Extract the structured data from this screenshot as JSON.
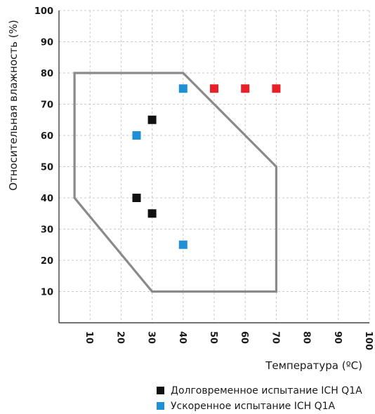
{
  "chart_data": {
    "type": "scatter",
    "title": "",
    "xlabel": "Температура (ºC)",
    "ylabel": "Относительная влажность (%)",
    "xlim": [
      0,
      100
    ],
    "ylim": [
      0,
      100
    ],
    "x_ticks": [
      "10",
      "20",
      "30",
      "40",
      "50",
      "60",
      "70",
      "80",
      "90",
      "100"
    ],
    "y_ticks": [
      "10",
      "20",
      "30",
      "40",
      "50",
      "60",
      "70",
      "80",
      "90",
      "100"
    ],
    "grid": true,
    "legend_position": "bottom",
    "region_outline": {
      "color": "#8a8a8a",
      "points": [
        [
          5,
          80
        ],
        [
          40,
          80
        ],
        [
          70,
          50
        ],
        [
          70,
          10
        ],
        [
          30,
          10
        ],
        [
          5,
          40
        ]
      ]
    },
    "series": [
      {
        "name": "Долговременное испытание ICH Q1A",
        "color": "#111111",
        "points": [
          [
            30,
            65
          ],
          [
            25,
            40
          ],
          [
            30,
            35
          ]
        ]
      },
      {
        "name": "Ускоренное испытание ICH Q1A",
        "color": "#1f8fd6",
        "points": [
          [
            40,
            75
          ],
          [
            25,
            60
          ],
          [
            40,
            25
          ]
        ]
      },
      {
        "name": "",
        "color": "#e8202a",
        "points": [
          [
            50,
            75
          ],
          [
            60,
            75
          ],
          [
            70,
            75
          ]
        ]
      }
    ]
  }
}
